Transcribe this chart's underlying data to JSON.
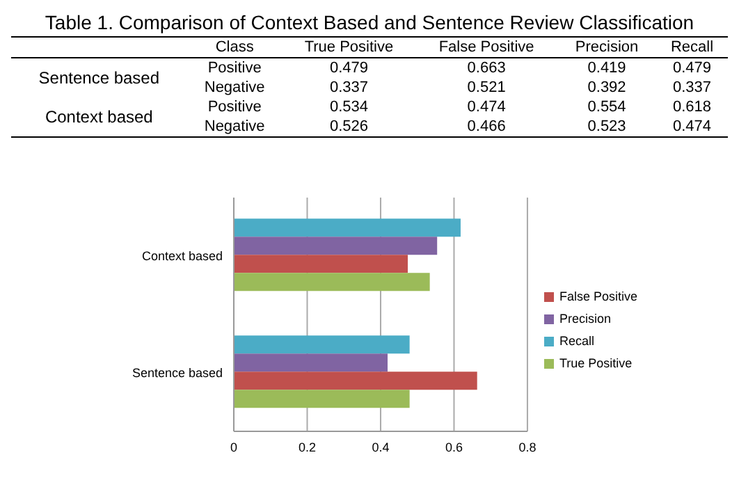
{
  "chart_data": [
    {
      "type": "other",
      "title": "Table 1. Comparison of Context Based and Sentence Review Classification",
      "annotations": [
        "Class",
        "True Positive",
        "False Positive",
        "Precision",
        "Recall",
        "Sentence based",
        "Positive",
        "0.479",
        "0.663",
        "0.419",
        "0.479",
        "Negative",
        "0.337",
        "0.521",
        "0.392",
        "0.337",
        "Context based",
        "Positive",
        "0.534",
        "0.474",
        "0.554",
        "0.618",
        "Negative",
        "0.526",
        "0.466",
        "0.523",
        "0.474"
      ]
    },
    {
      "type": "bar",
      "orientation": "horizontal",
      "categories": [
        "Context based",
        "Sentence based"
      ],
      "series": [
        {
          "name": "Recall",
          "color": "#4bacc6",
          "values": [
            0.618,
            0.479
          ]
        },
        {
          "name": "Precision",
          "color": "#8064a2",
          "values": [
            0.554,
            0.419
          ]
        },
        {
          "name": "False Positive",
          "color": "#c0504d",
          "values": [
            0.474,
            0.663
          ]
        },
        {
          "name": "True Positive",
          "color": "#9bbb59",
          "values": [
            0.534,
            0.479
          ]
        }
      ],
      "xlim": [
        0,
        0.8
      ],
      "xticks": [
        0,
        0.2,
        0.4,
        0.6,
        0.8
      ],
      "grid": "x",
      "legend": "right"
    }
  ]
}
